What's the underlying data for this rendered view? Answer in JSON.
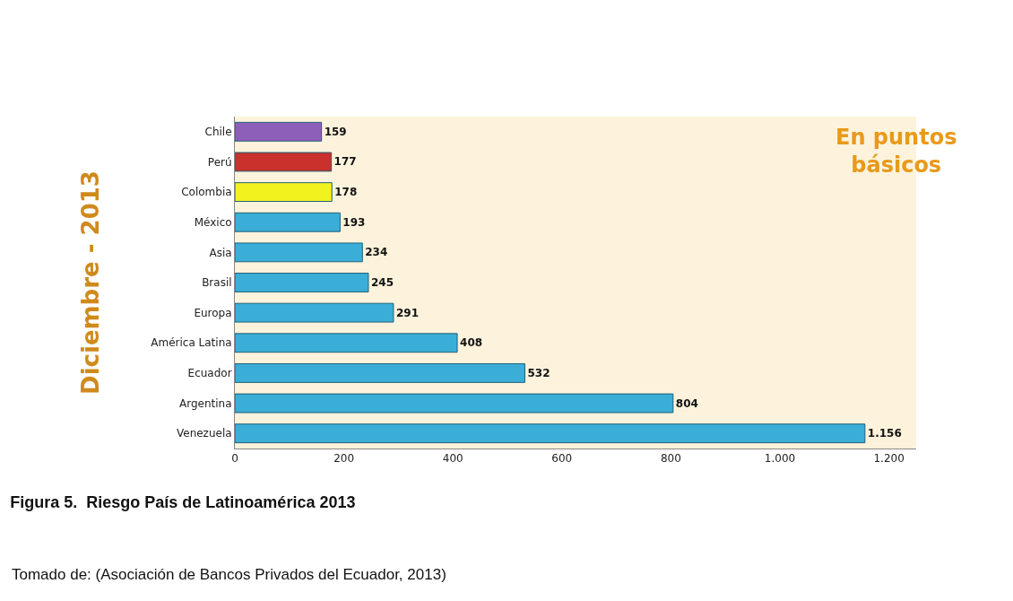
{
  "chart_data": {
    "type": "bar",
    "orientation": "horizontal",
    "title": "Figura 5.  Riesgo País de Latinoamérica 2013",
    "ylabel": "Diciembre - 2013",
    "categories": [
      "Chile",
      "Perú",
      "Colombia",
      "México",
      "Asia",
      "Brasil",
      "Europa",
      "América Latina",
      "Ecuador",
      "Argentina",
      "Venezuela"
    ],
    "values": [
      159,
      177,
      178,
      193,
      234,
      245,
      291,
      408,
      532,
      804,
      1156
    ],
    "value_labels": [
      "159",
      "177",
      "178",
      "193",
      "234",
      "245",
      "291",
      "408",
      "532",
      "804",
      "1.156"
    ],
    "colors": [
      "#8e5fb8",
      "#c8312c",
      "#f2f21e",
      "#3aaed6",
      "#3aaed6",
      "#3aaed6",
      "#3aaed6",
      "#3aaed6",
      "#3aaed6",
      "#3aaed6",
      "#3aaed6"
    ],
    "xlim": [
      0,
      1250
    ],
    "xticks": [
      0,
      200,
      400,
      600,
      800,
      {
        "value": 1000,
        "label": "1.000"
      },
      {
        "value": 1200,
        "label": "1.200"
      }
    ],
    "grid": false,
    "annotations": [
      "En puntos básicos",
      "Tomado de: (Asociación de Bancos Privados del Ecuador, 2013)"
    ]
  }
}
